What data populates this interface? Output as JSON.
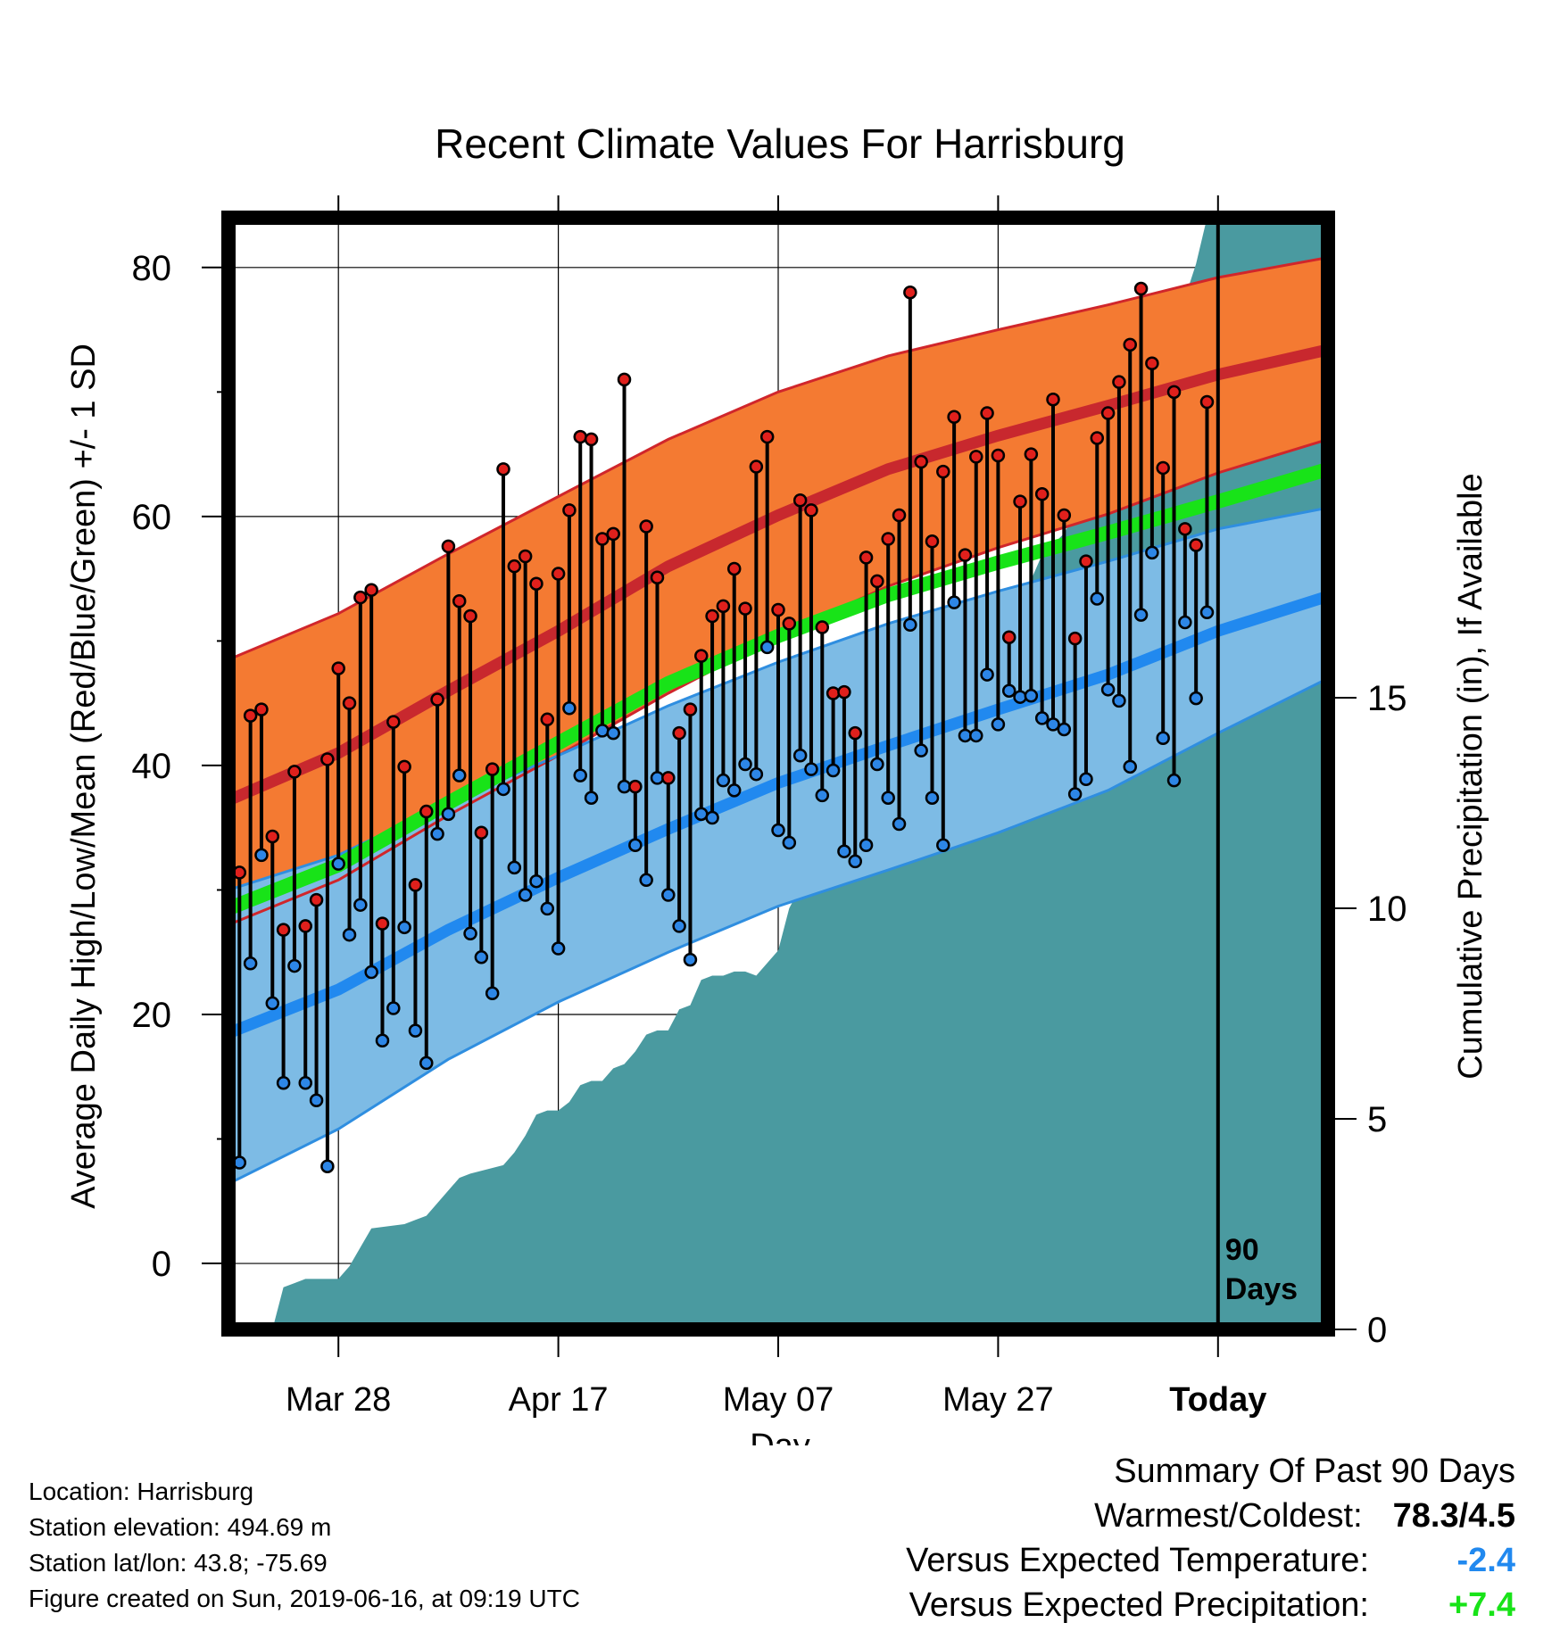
{
  "chart_data": {
    "type": "line",
    "title": "Recent Climate Values For Harrisburg",
    "xlabel": "Day",
    "ylabel": "Average Daily High/Low/Mean (Red/Blue/Green) +/- 1 SD",
    "y2label": "Cumulative Precipitation (in), If Available",
    "ylim": [
      -5.3,
      84
    ],
    "y2lim": [
      0,
      26.4
    ],
    "yticks": [
      0,
      20,
      40,
      60,
      80
    ],
    "y2ticks": [
      0,
      5,
      10,
      15
    ],
    "xtick_labels": [
      "Mar 28",
      "Apr 17",
      "May 07",
      "May 27",
      "Today"
    ],
    "xtick_day_index": [
      10,
      30,
      50,
      70,
      90
    ],
    "x_day_range": [
      0,
      100
    ],
    "grid": true,
    "today_marker": {
      "day_index": 90,
      "label_line1": "90",
      "label_line2": "Days"
    },
    "colors": {
      "high_band": "#f47a32",
      "high_edge": "#d0262b",
      "high_mean": "#c8282e",
      "low_band": "#7dbbe5",
      "low_edge": "#2f8ee0",
      "low_mean": "#2189ef",
      "mean_line": "#18e318",
      "precip": "#4a9aa0",
      "frame": "#000000"
    },
    "normals": {
      "day_index": [
        0,
        10,
        20,
        30,
        40,
        50,
        60,
        70,
        80,
        90,
        100
      ],
      "high_mean": [
        37.2,
        41.0,
        46.0,
        50.8,
        56.0,
        60.1,
        63.8,
        66.5,
        68.9,
        71.4,
        73.4
      ],
      "high_plus_sd": [
        48.5,
        52.2,
        57.0,
        61.6,
        66.2,
        70.0,
        72.9,
        75.0,
        77.0,
        79.2,
        80.8
      ],
      "high_minus_sd": [
        27.2,
        30.8,
        36.0,
        40.8,
        45.8,
        50.4,
        54.4,
        57.5,
        60.2,
        63.5,
        66.2
      ],
      "mean_mean": [
        28.5,
        32.0,
        37.0,
        41.8,
        46.6,
        50.4,
        53.7,
        56.3,
        58.7,
        61.2,
        63.8
      ],
      "low_mean": [
        18.5,
        22.0,
        26.8,
        31.0,
        34.9,
        38.6,
        41.6,
        44.5,
        47.3,
        50.8,
        53.6
      ],
      "low_plus_sd": [
        30.0,
        32.8,
        37.0,
        40.8,
        44.8,
        48.3,
        51.4,
        54.0,
        56.4,
        59.0,
        60.7
      ],
      "low_minus_sd": [
        6.4,
        10.8,
        16.4,
        21.0,
        25.0,
        28.7,
        31.6,
        34.6,
        38.0,
        42.6,
        47.0
      ]
    },
    "series": [
      {
        "name": "High",
        "values": [
          28.5,
          31.4,
          44,
          44.5,
          34.3,
          26.8,
          39.5,
          27.1,
          29.2,
          40.5,
          47.8,
          45,
          53.5,
          54.1,
          27.3,
          43.5,
          39.9,
          30.4,
          36.3,
          45.3,
          57.6,
          53.2,
          52,
          34.6,
          39.7,
          63.8,
          56,
          56.8,
          54.6,
          43.7,
          55.4,
          60.5,
          66.4,
          66.2,
          58.2,
          58.6,
          71,
          38.3,
          59.2,
          55.1,
          39,
          42.6,
          44.5,
          48.8,
          52,
          52.8,
          55.8,
          52.6,
          64,
          66.4,
          52.5,
          51.4,
          61.3,
          60.5,
          51.1,
          45.8,
          45.9,
          42.6,
          56.7,
          54.8,
          58.2,
          60.1,
          78,
          64.4,
          58,
          63.6,
          68,
          56.9,
          64.8,
          68.3,
          64.9,
          50.3,
          61.2,
          65,
          61.8,
          69.4,
          60.1,
          50.2,
          56.4,
          66.3,
          68.3,
          70.8,
          73.8,
          78.3,
          72.3,
          63.9,
          70,
          59,
          57.7,
          69.2
        ]
      },
      {
        "name": "Low",
        "values": [
          4.5,
          8.1,
          24.1,
          32.8,
          20.9,
          14.5,
          23.9,
          14.5,
          13.1,
          7.8,
          32.1,
          26.4,
          28.8,
          23.4,
          17.9,
          20.5,
          27,
          18.7,
          16.1,
          34.5,
          36.1,
          39.2,
          26.5,
          24.6,
          21.7,
          38.1,
          31.8,
          29.6,
          30.7,
          28.5,
          25.3,
          44.6,
          39.2,
          37.4,
          42.8,
          42.6,
          38.3,
          33.6,
          30.8,
          39,
          29.6,
          27.1,
          24.4,
          36.1,
          35.8,
          38.8,
          38,
          40.1,
          39.3,
          49.5,
          34.8,
          33.8,
          40.8,
          39.7,
          37.6,
          39.6,
          33.1,
          32.3,
          33.6,
          40.1,
          37.4,
          35.3,
          51.3,
          41.2,
          37.4,
          33.6,
          53.1,
          42.4,
          42.4,
          47.3,
          43.3,
          46,
          45.5,
          45.6,
          43.8,
          43.3,
          42.9,
          37.7,
          38.9,
          53.4,
          46.1,
          45.2,
          39.9,
          52.1,
          57.1,
          42.2,
          38.8,
          51.5,
          45.4,
          52.3
        ]
      }
    ],
    "precip": {
      "day_index": [
        4,
        5,
        6,
        7,
        10,
        11,
        13,
        16,
        17,
        18,
        21,
        22,
        25,
        26,
        27,
        28,
        29,
        30,
        31,
        32,
        33,
        34,
        35,
        36,
        37,
        38,
        39,
        40,
        41,
        42,
        43,
        44,
        45,
        46,
        47,
        48,
        49,
        50,
        51,
        52,
        53,
        54,
        55,
        56,
        57,
        58,
        59,
        60,
        62,
        63,
        64,
        65,
        66,
        67,
        68,
        69,
        70,
        71,
        72,
        73,
        74,
        76,
        77,
        78,
        80,
        82,
        83,
        84,
        85,
        86,
        87,
        88,
        89,
        100
      ],
      "values": [
        0,
        1,
        1.1,
        1.2,
        1.2,
        1.5,
        2.4,
        2.5,
        2.6,
        2.7,
        3.6,
        3.7,
        3.9,
        4.2,
        4.6,
        5.1,
        5.2,
        5.2,
        5.4,
        5.8,
        5.9,
        5.9,
        6.2,
        6.3,
        6.6,
        7.0,
        7.1,
        7.1,
        7.6,
        7.7,
        8.3,
        8.4,
        8.4,
        8.5,
        8.5,
        8.4,
        8.7,
        9.0,
        10.0,
        10.5,
        11.7,
        12.0,
        12.5,
        13.6,
        14.0,
        14.2,
        14.4,
        14.4,
        14.7,
        15.3,
        15.4,
        15.6,
        16.1,
        16.5,
        16.8,
        17.4,
        17.4,
        17.5,
        17.5,
        17.8,
        18.4,
        18.9,
        19.4,
        19.5,
        19.5,
        20.0,
        21.0,
        22.8,
        23.0,
        23.5,
        24.5,
        25.3,
        26.4,
        26.4
      ]
    }
  },
  "footer": {
    "location": "Location: Harrisburg",
    "elevation": "Station elevation: 494.69 m",
    "latlon": "Station lat/lon: 43.8; -75.69",
    "created": "Figure created on Sun, 2019-06-16, at 09:19 UTC"
  },
  "summary": {
    "title": "Summary Of Past 90 Days",
    "warmest_label": "Warmest/Coldest:",
    "warmest_value": "78.3/4.5",
    "temp_label": "Versus Expected Temperature:",
    "temp_value": "-2.4",
    "temp_color": "#2189ef",
    "precip_label": "Versus Expected Precipitation:",
    "precip_value": "+7.4",
    "precip_color": "#18e318"
  }
}
